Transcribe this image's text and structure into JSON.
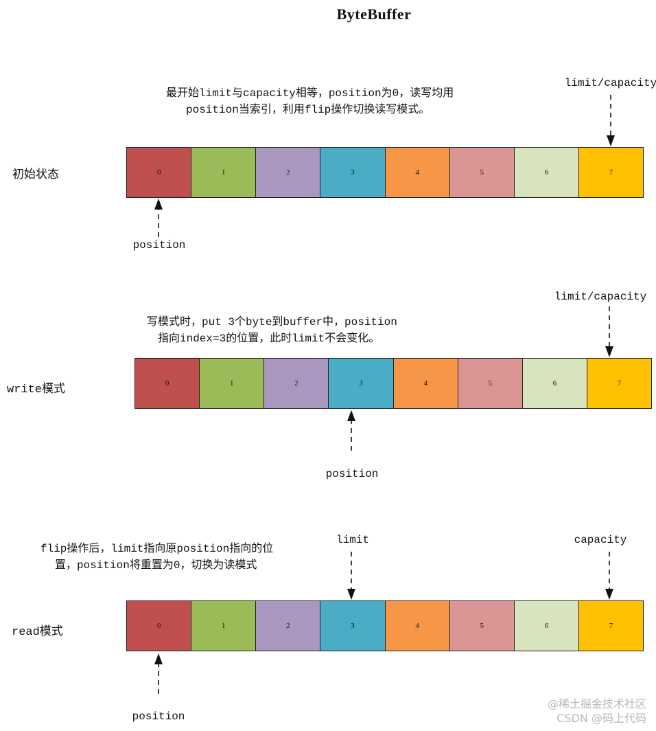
{
  "title": "ByteBuffer",
  "cell_colors": [
    "#C0504D",
    "#9BBB59",
    "#A997BF",
    "#4BACC6",
    "#F79646",
    "#D99694",
    "#D7E4BD",
    "#FFC000"
  ],
  "rows": [
    {
      "label": "初始状态",
      "caption": [
        "最开始limit与capacity相等，position为0，读写均用",
        "position当索引，利用flip操作切换读写模式。"
      ],
      "cells": [
        "0",
        "1",
        "2",
        "3",
        "4",
        "5",
        "6",
        "7"
      ],
      "pointers": {
        "top": "limit/capacity",
        "bottom": "position"
      }
    },
    {
      "label": "write模式",
      "caption": [
        "写模式时，put 3个byte到buffer中，position",
        "指向index=3的位置，此时limit不会变化。"
      ],
      "cells": [
        "0",
        "1",
        "2",
        "3",
        "4",
        "5",
        "6",
        "7"
      ],
      "pointers": {
        "top": "limit/capacity",
        "bottom": "position"
      }
    },
    {
      "label": "read模式",
      "caption": [
        "flip操作后，limit指向原position指向的位",
        "置，position将重置为0，切换为读模式"
      ],
      "cells": [
        "0",
        "1",
        "2",
        "3",
        "4",
        "5",
        "6",
        "7"
      ],
      "pointers": {
        "top_limit": "limit",
        "top_capacity": "capacity",
        "bottom": "position"
      }
    }
  ],
  "watermark": [
    "@稀土掘金技术社区",
    "CSDN @码上代码"
  ]
}
